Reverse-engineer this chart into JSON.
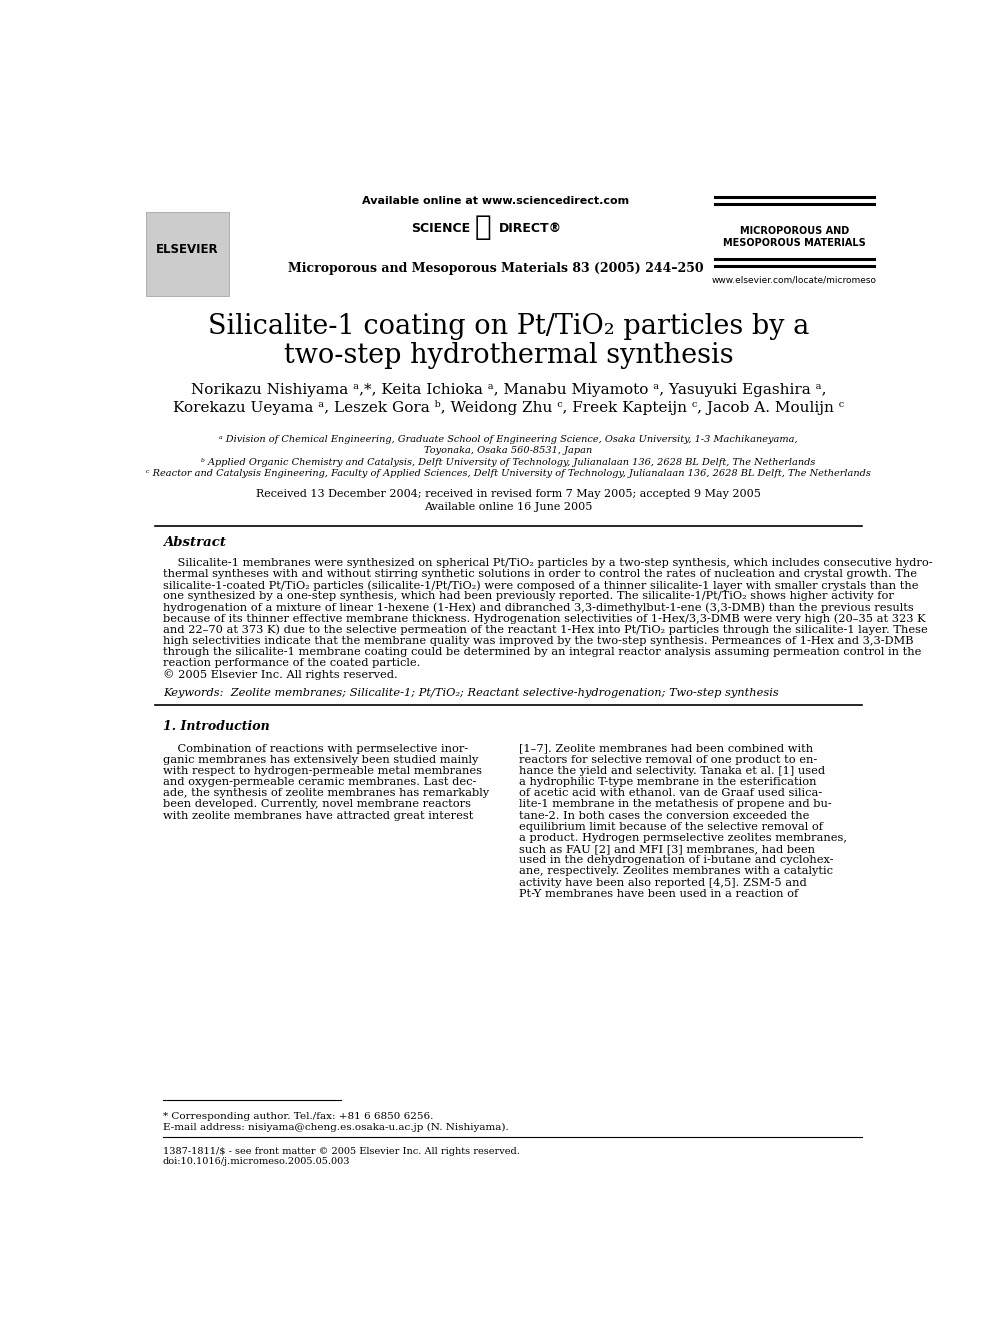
{
  "bg_color": "#ffffff",
  "header_available_online": "Available online at www.sciencedirect.com",
  "journal_name": "Microporous and Mesoporous Materials 83 (2005) 244–250",
  "journal_abbr_line1": "MICROPOROUS AND",
  "journal_abbr_line2": "MESOPOROUS MATERIALS",
  "journal_url": "www.elsevier.com/locate/micromeso",
  "title_line1": "Silicalite-1 coating on Pt/TiO₂ particles by a",
  "title_line2": "two-step hydrothermal synthesis",
  "authors_line1": "Norikazu Nishiyama ᵃ,*, Keita Ichioka ᵃ, Manabu Miyamoto ᵃ, Yasuyuki Egashira ᵃ,",
  "authors_line2": "Korekazu Ueyama ᵃ, Leszek Gora ᵇ, Weidong Zhu ᶜ, Freek Kapteijn ᶜ, Jacob A. Moulijn ᶜ",
  "affil_a": "ᵃ Division of Chemical Engineering, Graduate School of Engineering Science, Osaka University, 1-3 Machikaneyama,",
  "affil_a2": "Toyonaka, Osaka 560-8531, Japan",
  "affil_b": "ᵇ Applied Organic Chemistry and Catalysis, Delft University of Technology, Julianalaan 136, 2628 BL Delft, The Netherlands",
  "affil_c": "ᶜ Reactor and Catalysis Engineering, Faculty of Applied Sciences, Delft University of Technology, Julianalaan 136, 2628 BL Delft, The Netherlands",
  "received": "Received 13 December 2004; received in revised form 7 May 2005; accepted 9 May 2005",
  "available_online": "Available online 16 June 2005",
  "abstract_title": "Abstract",
  "abstract_lines": [
    "    Silicalite-1 membranes were synthesized on spherical Pt/TiO₂ particles by a two-step synthesis, which includes consecutive hydro-",
    "thermal syntheses with and without stirring synthetic solutions in order to control the rates of nucleation and crystal growth. The",
    "silicalite-1-coated Pt/TiO₂ particles (silicalite-1/Pt/TiO₂) were composed of a thinner silicalite-1 layer with smaller crystals than the",
    "one synthesized by a one-step synthesis, which had been previously reported. The silicalite-1/Pt/TiO₂ shows higher activity for",
    "hydrogenation of a mixture of linear 1-hexene (1-Hex) and dibranched 3,3-dimethylbut-1-ene (3,3-DMB) than the previous results",
    "because of its thinner effective membrane thickness. Hydrogenation selectivities of 1-Hex/3,3-DMB were very high (20–35 at 323 K",
    "and 22–70 at 373 K) due to the selective permeation of the reactant 1-Hex into Pt/TiO₂ particles through the silicalite-1 layer. These",
    "high selectivities indicate that the membrane quality was improved by the two-step synthesis. Permeances of 1-Hex and 3,3-DMB",
    "through the silicalite-1 membrane coating could be determined by an integral reactor analysis assuming permeation control in the",
    "reaction performance of the coated particle.",
    "© 2005 Elsevier Inc. All rights reserved."
  ],
  "keywords": "Keywords:  Zeolite membranes; Silicalite-1; Pt/TiO₂; Reactant selective-hydrogenation; Two-step synthesis",
  "intro_title": "1. Introduction",
  "intro_col1_lines": [
    "    Combination of reactions with permselective inor-",
    "ganic membranes has extensively been studied mainly",
    "with respect to hydrogen-permeable metal membranes",
    "and oxygen-permeable ceramic membranes. Last dec-",
    "ade, the synthesis of zeolite membranes has remarkably",
    "been developed. Currently, novel membrane reactors",
    "with zeolite membranes have attracted great interest"
  ],
  "intro_col2_lines": [
    "[1–7]. Zeolite membranes had been combined with",
    "reactors for selective removal of one product to en-",
    "hance the yield and selectivity. Tanaka et al. [1] used",
    "a hydrophilic T-type membrane in the esterification",
    "of acetic acid with ethanol. van de Graaf used silica-",
    "lite-1 membrane in the metathesis of propene and bu-",
    "tane-2. In both cases the conversion exceeded the",
    "equilibrium limit because of the selective removal of",
    "a product. Hydrogen permselective zeolites membranes,",
    "such as FAU [2] and MFI [3] membranes, had been",
    "used in the dehydrogenation of i-butane and cyclohex-",
    "ane, respectively. Zeolites membranes with a catalytic",
    "activity have been also reported [4,5]. ZSM-5 and",
    "Pt-Y membranes have been used in a reaction of"
  ],
  "footnote_star": "* Corresponding author. Tel./fax: +81 6 6850 6256.",
  "footnote_email": "E-mail address: nisiyama@cheng.es.osaka-u.ac.jp (N. Nishiyama).",
  "footnote_issn": "1387-1811/$ - see front matter © 2005 Elsevier Inc. All rights reserved.",
  "footnote_doi": "doi:10.1016/j.micromeso.2005.05.003"
}
